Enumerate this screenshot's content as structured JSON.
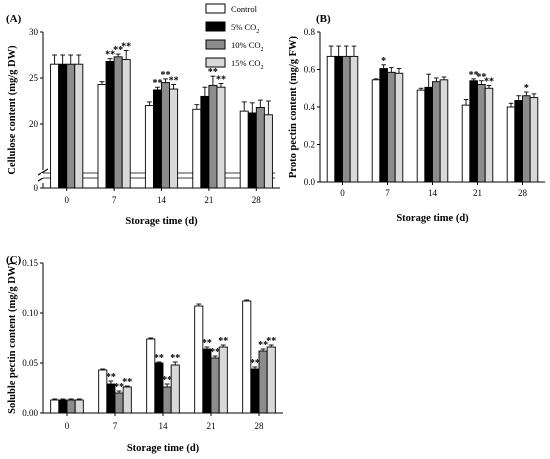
{
  "legend": {
    "items": [
      {
        "name": "Control",
        "sub": "",
        "color": "#ffffff"
      },
      {
        "name": "5% CO",
        "sub": "2",
        "color": "#000000"
      },
      {
        "name": "10% CO",
        "sub": "2",
        "color": "#8c8c8c"
      },
      {
        "name": "15% CO",
        "sub": "2",
        "color": "#d9d9d9"
      }
    ]
  },
  "chart_data": [
    {
      "type": "bar",
      "panel_label": "(A)",
      "xlabel": "Storage time (d)",
      "ylabel": "Cellulose content (mg/g DW)",
      "categories": [
        "0",
        "7",
        "14",
        "21",
        "28"
      ],
      "axis_break": {
        "from": 1,
        "to": 15
      },
      "ylim": [
        0,
        30
      ],
      "yticks": [
        0,
        20,
        25,
        30
      ],
      "series": [
        {
          "name": "Control",
          "values": [
            26.5,
            24.3,
            22.0,
            21.6,
            21.4
          ],
          "errors": [
            1.0,
            0.3,
            0.4,
            0.5,
            1.0
          ]
        },
        {
          "name": "5% CO2",
          "values": [
            26.5,
            26.8,
            23.7,
            23.0,
            21.2
          ],
          "errors": [
            1.0,
            0.3,
            0.3,
            1.0,
            1.1
          ]
        },
        {
          "name": "10% CO2",
          "values": [
            26.5,
            27.3,
            24.5,
            24.2,
            21.8
          ],
          "errors": [
            1.0,
            0.3,
            0.4,
            1.0,
            0.8
          ]
        },
        {
          "name": "15% CO2",
          "values": [
            26.5,
            27.0,
            23.8,
            24.0,
            21.0
          ],
          "errors": [
            1.0,
            1.0,
            0.5,
            0.4,
            1.5
          ]
        }
      ],
      "annotations": [
        {
          "category": "7",
          "series": "5% CO2",
          "text": "**"
        },
        {
          "category": "7",
          "series": "10% CO2",
          "text": "**"
        },
        {
          "category": "7",
          "series": "15% CO2",
          "text": "**"
        },
        {
          "category": "14",
          "series": "5% CO2",
          "text": "**"
        },
        {
          "category": "14",
          "series": "10% CO2",
          "text": "**"
        },
        {
          "category": "14",
          "series": "15% CO2",
          "text": "**"
        },
        {
          "category": "21",
          "series": "10% CO2",
          "text": "**"
        },
        {
          "category": "21",
          "series": "15% CO2",
          "text": "**"
        }
      ]
    },
    {
      "type": "bar",
      "panel_label": "(B)",
      "xlabel": "Storage time (d)",
      "ylabel": "Proto pectin content (mg/g FW)",
      "categories": [
        "0",
        "7",
        "14",
        "21",
        "28"
      ],
      "ylim": [
        0,
        0.8
      ],
      "yticks": [
        0.0,
        0.2,
        0.4,
        0.6,
        0.8
      ],
      "series": [
        {
          "name": "Control",
          "values": [
            0.67,
            0.545,
            0.49,
            0.41,
            0.4
          ],
          "errors": [
            0.055,
            0.005,
            0.01,
            0.03,
            0.02
          ]
        },
        {
          "name": "5% CO2",
          "values": [
            0.67,
            0.605,
            0.505,
            0.54,
            0.435
          ],
          "errors": [
            0.055,
            0.02,
            0.07,
            0.01,
            0.025
          ]
        },
        {
          "name": "10% CO2",
          "values": [
            0.67,
            0.585,
            0.535,
            0.52,
            0.46
          ],
          "errors": [
            0.055,
            0.025,
            0.02,
            0.02,
            0.02
          ]
        },
        {
          "name": "15% CO2",
          "values": [
            0.67,
            0.58,
            0.545,
            0.5,
            0.45
          ],
          "errors": [
            0.055,
            0.025,
            0.015,
            0.015,
            0.02
          ]
        }
      ],
      "annotations": [
        {
          "category": "7",
          "series": "5% CO2",
          "text": "*"
        },
        {
          "category": "21",
          "series": "5% CO2",
          "text": "**"
        },
        {
          "category": "21",
          "series": "10% CO2",
          "text": "**"
        },
        {
          "category": "21",
          "series": "15% CO2",
          "text": "**"
        },
        {
          "category": "28",
          "series": "10% CO2",
          "text": "*"
        }
      ]
    },
    {
      "type": "bar",
      "panel_label": "(C)",
      "xlabel": "Storage time (d)",
      "ylabel": "Soluble pectin content (mg/g DW)",
      "categories": [
        "0",
        "7",
        "14",
        "21",
        "28"
      ],
      "ylim": [
        0,
        0.15
      ],
      "yticks": [
        0.0,
        0.05,
        0.1,
        0.15
      ],
      "series": [
        {
          "name": "Control",
          "values": [
            0.013,
            0.043,
            0.074,
            0.107,
            0.112
          ],
          "errors": [
            0.001,
            0.001,
            0.001,
            0.002,
            0.001
          ]
        },
        {
          "name": "5% CO2",
          "values": [
            0.013,
            0.029,
            0.05,
            0.064,
            0.044
          ],
          "errors": [
            0.001,
            0.003,
            0.001,
            0.002,
            0.002
          ]
        },
        {
          "name": "10% CO2",
          "values": [
            0.013,
            0.02,
            0.026,
            0.055,
            0.062
          ],
          "errors": [
            0.001,
            0.002,
            0.003,
            0.002,
            0.002
          ]
        },
        {
          "name": "15% CO2",
          "values": [
            0.013,
            0.026,
            0.048,
            0.066,
            0.066
          ],
          "errors": [
            0.001,
            0.001,
            0.003,
            0.002,
            0.002
          ]
        }
      ],
      "annotations": [
        {
          "category": "7",
          "series": "5% CO2",
          "text": "**"
        },
        {
          "category": "7",
          "series": "10% CO2",
          "text": "**"
        },
        {
          "category": "7",
          "series": "15% CO2",
          "text": "**"
        },
        {
          "category": "14",
          "series": "5% CO2",
          "text": "**"
        },
        {
          "category": "14",
          "series": "10% CO2",
          "text": "**"
        },
        {
          "category": "14",
          "series": "15% CO2",
          "text": "**"
        },
        {
          "category": "21",
          "series": "5% CO2",
          "text": "**"
        },
        {
          "category": "21",
          "series": "10% CO2",
          "text": "**"
        },
        {
          "category": "21",
          "series": "15% CO2",
          "text": "**"
        },
        {
          "category": "28",
          "series": "5% CO2",
          "text": "**"
        },
        {
          "category": "28",
          "series": "10% CO2",
          "text": "**"
        },
        {
          "category": "28",
          "series": "15% CO2",
          "text": "**"
        }
      ]
    }
  ]
}
